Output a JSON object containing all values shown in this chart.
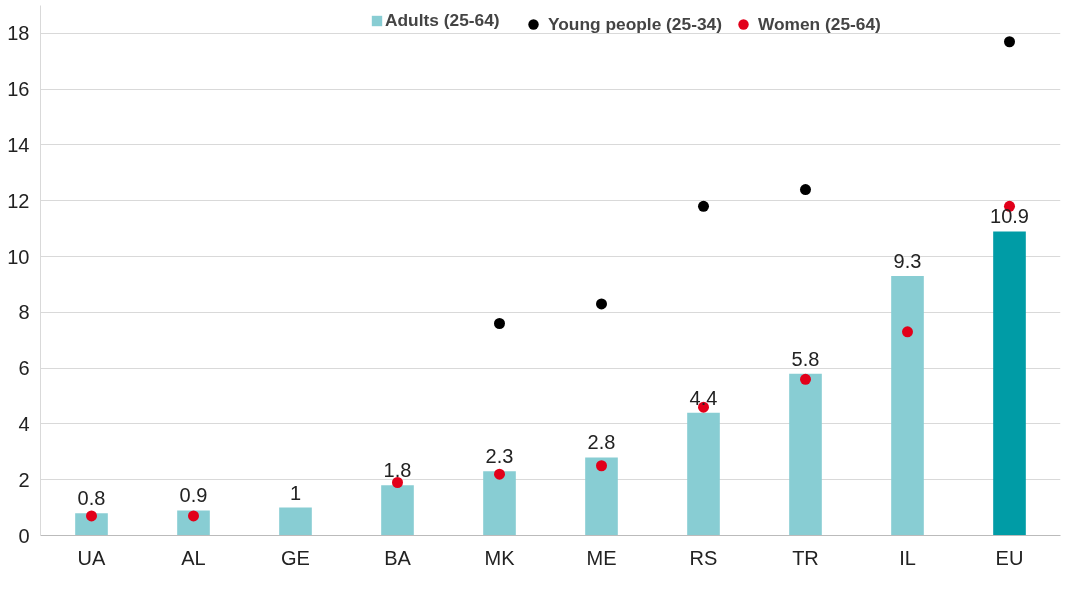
{
  "chart_data": {
    "type": "bar",
    "categories": [
      "UA",
      "AL",
      "GE",
      "BA",
      "MK",
      "ME",
      "RS",
      "TR",
      "IL",
      "EU"
    ],
    "series": [
      {
        "name": "Adults (25-64)",
        "colors": [
          "#88cdd3",
          "#88cdd3",
          "#88cdd3",
          "#88cdd3",
          "#88cdd3",
          "#88cdd3",
          "#88cdd3",
          "#88cdd3",
          "#88cdd3",
          "#009ca6"
        ],
        "values": [
          0.8,
          0.9,
          1,
          1.8,
          2.3,
          2.8,
          4.4,
          5.8,
          9.3,
          10.9
        ],
        "data_labels": true
      },
      {
        "name": "Young people (25-34)",
        "type": "scatter",
        "color": "#000000",
        "marker": "circle",
        "values": [
          null,
          null,
          null,
          null,
          7.6,
          8.3,
          11.8,
          12.4,
          null,
          17.7
        ]
      },
      {
        "name": "Women (25-64)",
        "type": "scatter",
        "color": "#e2001a",
        "marker": "circle",
        "values": [
          0.7,
          0.7,
          null,
          1.9,
          2.2,
          2.5,
          4.6,
          5.6,
          7.3,
          11.8
        ]
      }
    ],
    "ylim": [
      0,
      19
    ],
    "yticks": [
      0,
      2,
      4,
      6,
      8,
      10,
      12,
      14,
      16,
      18
    ],
    "grid": "y",
    "legend": "top"
  }
}
